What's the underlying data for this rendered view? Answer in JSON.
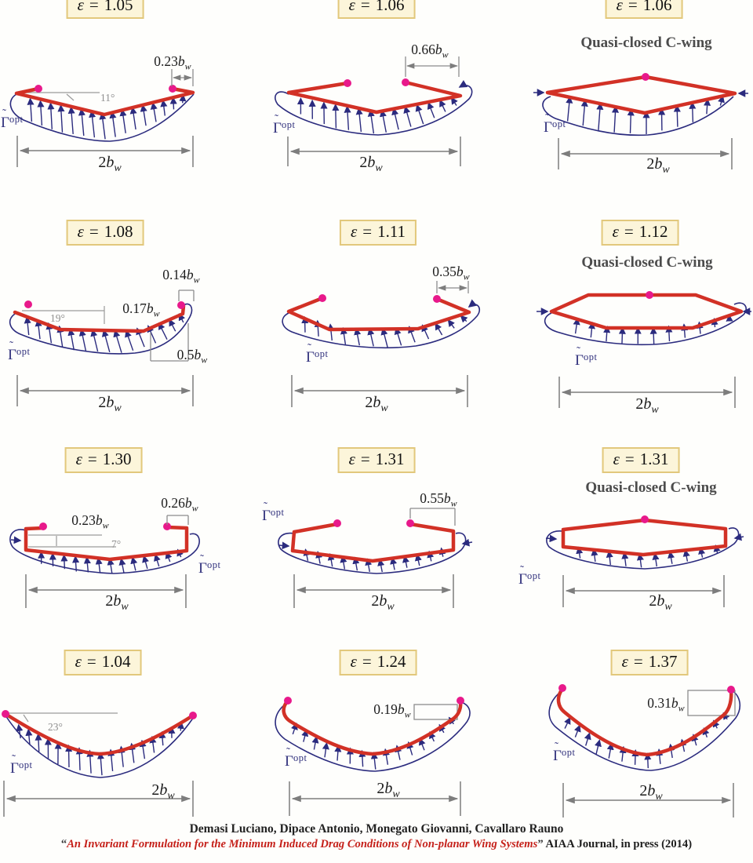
{
  "labels": {
    "epsilon_symbol": "ε",
    "equals": "=",
    "gamma_base": "Γ",
    "gamma_tilde": "˜",
    "gamma_sup": "opt",
    "span_num": "2",
    "b": "b",
    "w": "w"
  },
  "colors": {
    "wing_red": "#d23126",
    "arrow_navy": "#2b2b7e",
    "tip_dot_magenta": "#e8198b",
    "badge_background": "#fcf5da",
    "badge_border": "#e2c87c",
    "dimension_gray": "#8c8c8c",
    "paper_title_red": "#c5201a"
  },
  "cells": [
    {
      "eps": "1.05",
      "angle": "11°",
      "dims": [
        "0.23"
      ]
    },
    {
      "eps": "1.06",
      "dims": [
        "0.66"
      ]
    },
    {
      "eps": "1.06",
      "subtitle": "Quasi-closed C-wing"
    },
    {
      "eps": "1.08",
      "angle": "19°",
      "dims": [
        "0.14",
        "0.17",
        "0.5"
      ]
    },
    {
      "eps": "1.11",
      "dims": [
        "0.35"
      ]
    },
    {
      "eps": "1.12",
      "subtitle": "Quasi-closed C-wing"
    },
    {
      "eps": "1.30",
      "angle": "7°",
      "dims": [
        "0.23",
        "0.26"
      ]
    },
    {
      "eps": "1.31",
      "dims": [
        "0.55"
      ]
    },
    {
      "eps": "1.31",
      "subtitle": "Quasi-closed C-wing"
    },
    {
      "eps": "1.04",
      "angle": "23°",
      "dims": []
    },
    {
      "eps": "1.24",
      "dims": [
        "0.19"
      ]
    },
    {
      "eps": "1.37",
      "dims": [
        "0.31"
      ]
    }
  ],
  "footer": {
    "authors": "Demasi Luciano, Dipace Antonio, Monegato Giovanni, Cavallaro Rauno",
    "open_quote": "“",
    "paper_title": "An Invariant Formulation for the Minimum Induced Drag Conditions of Non-planar Wing Systems",
    "close_quote": "”",
    "citation": " AIAA Journal, in press (2014)"
  }
}
